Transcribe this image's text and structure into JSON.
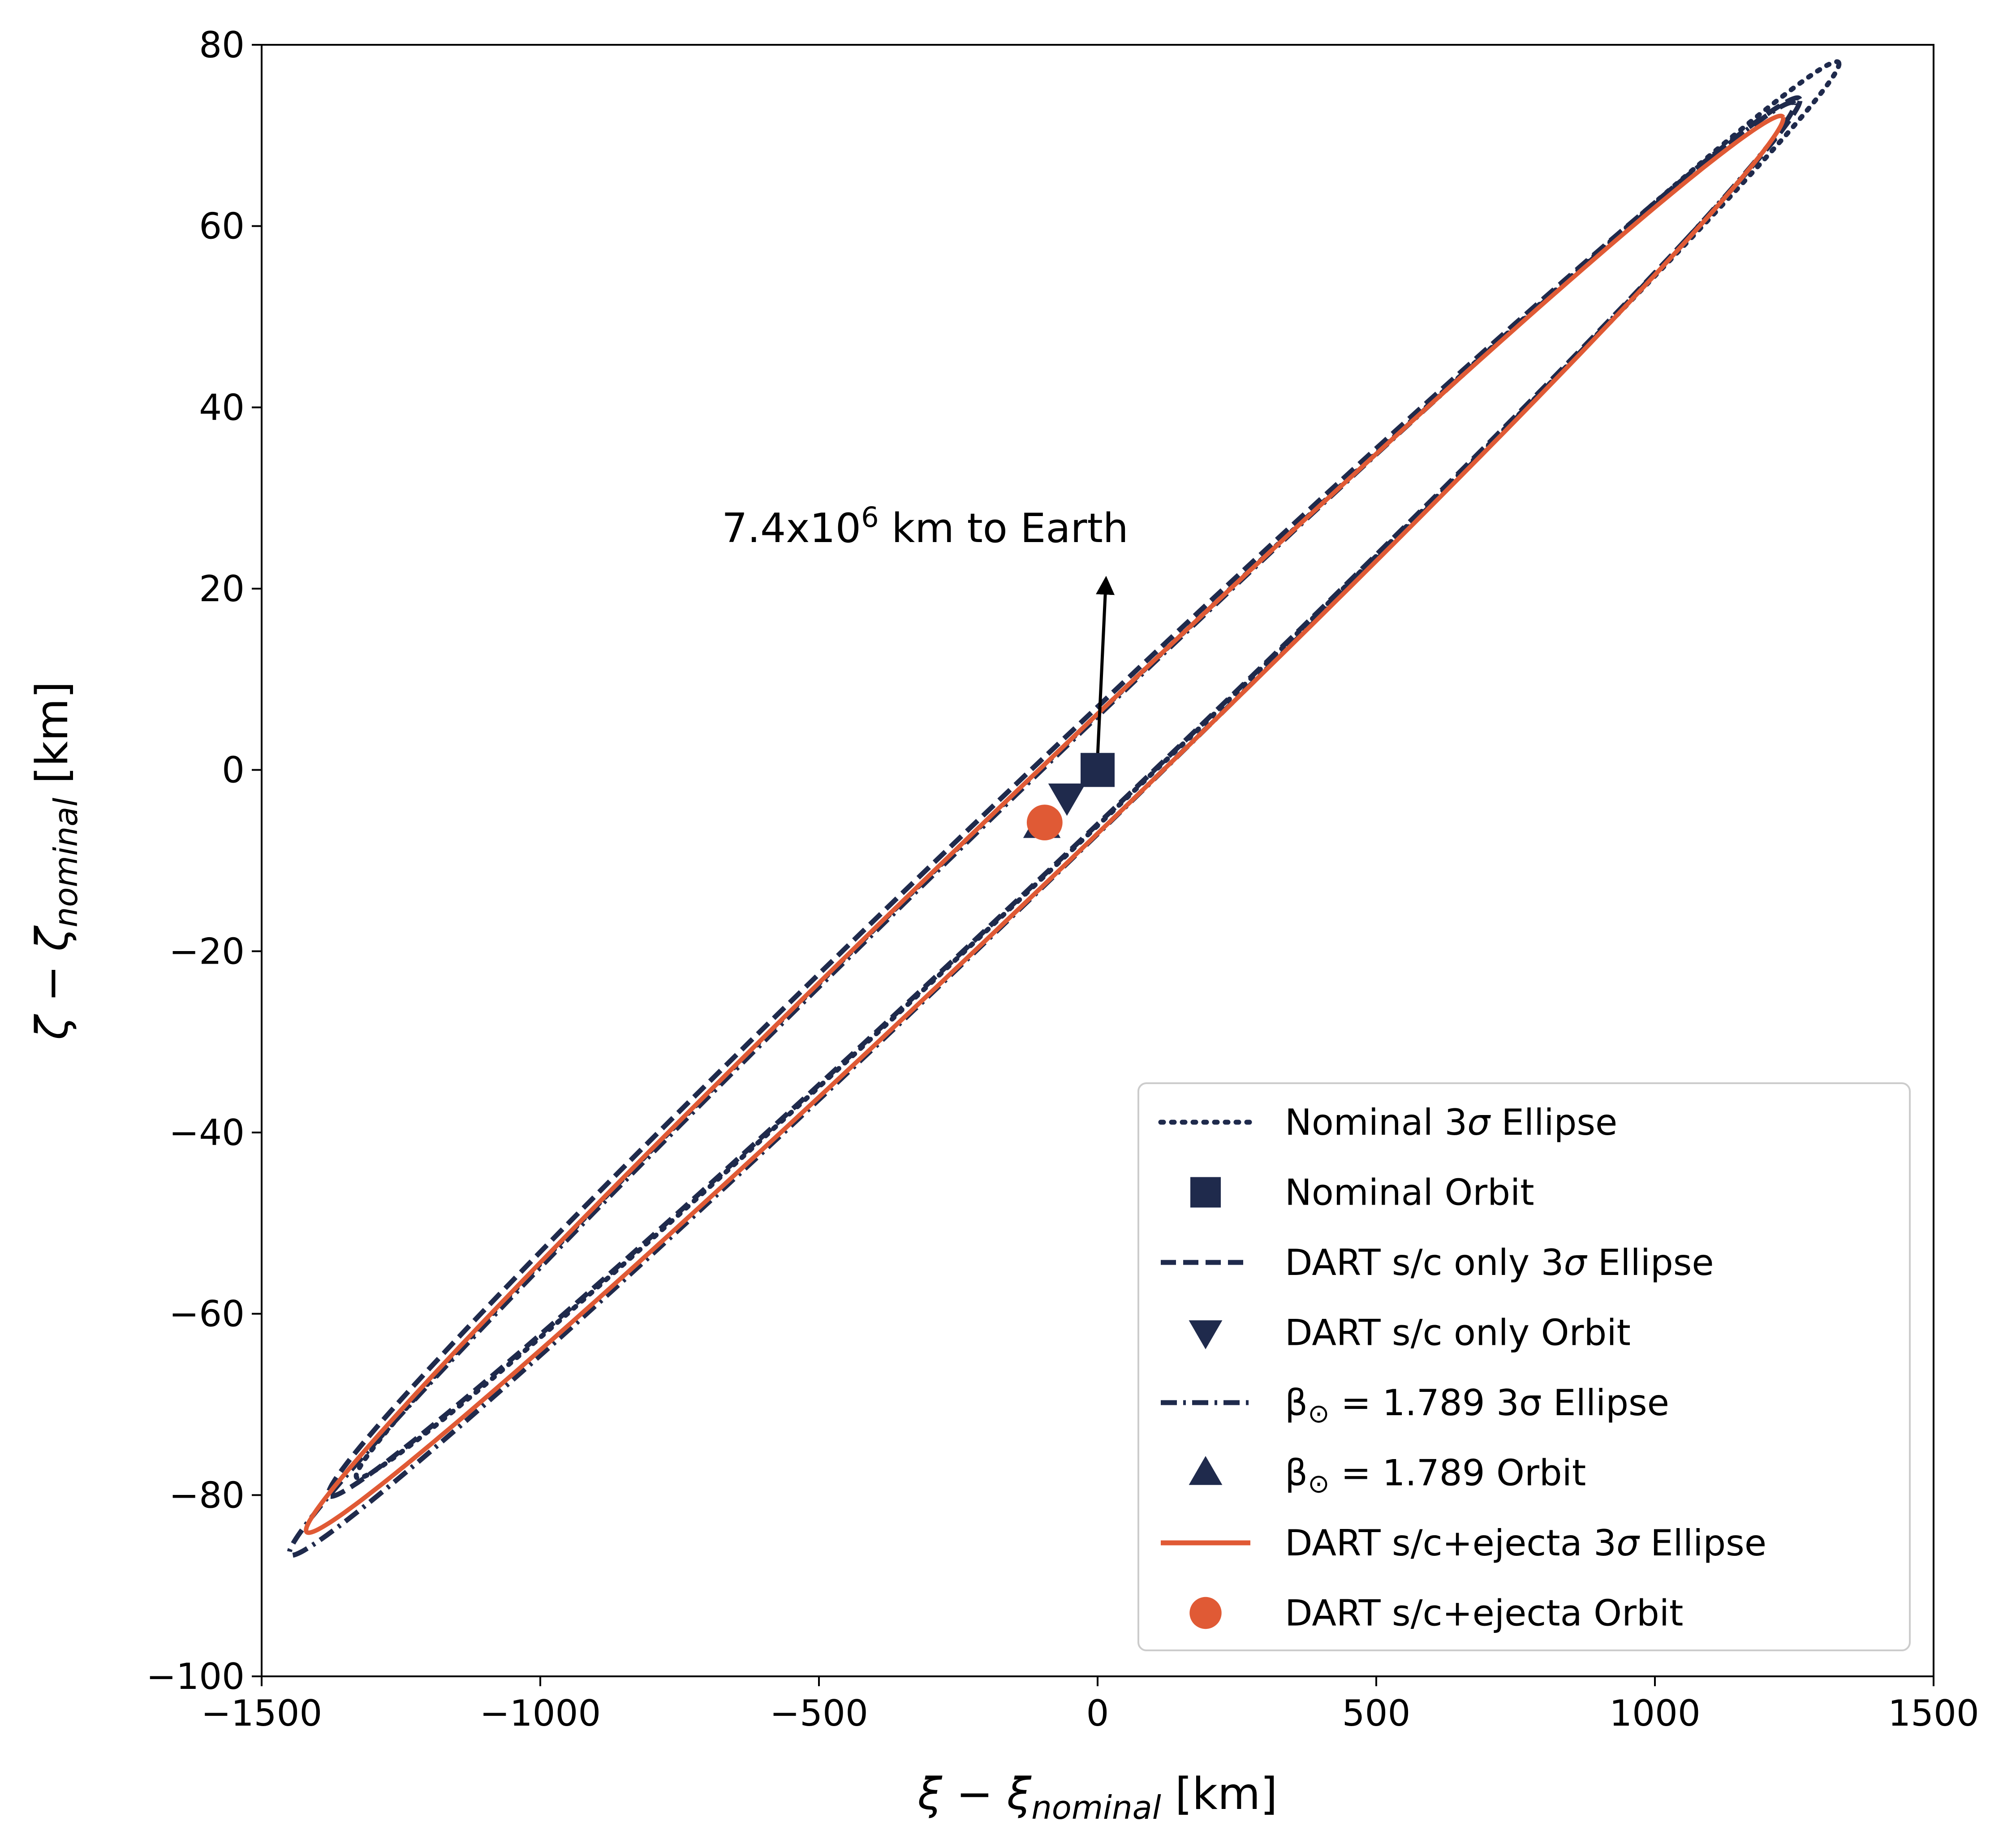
{
  "chart_data": {
    "type": "scatter",
    "xlabel": {
      "base": "ξ − ξ",
      "sub": "nominal",
      "unit": " [km]"
    },
    "ylabel": {
      "base": "ζ − ζ",
      "sub": "nominal",
      "unit": " [km]"
    },
    "xlim": [
      -1500,
      1500
    ],
    "ylim": [
      -100,
      80
    ],
    "xticks": [
      -1500,
      -1000,
      -500,
      0,
      500,
      1000,
      1500
    ],
    "yticks": [
      -100,
      -80,
      -60,
      -40,
      -20,
      0,
      20,
      40,
      60,
      80
    ],
    "xtick_labels": [
      "−1500",
      "−1000",
      "−500",
      "0",
      "500",
      "1000",
      "1500"
    ],
    "ytick_labels": [
      "−100",
      "−80",
      "−60",
      "−40",
      "−20",
      "0",
      "20",
      "40",
      "60",
      "80"
    ],
    "grid": false,
    "legend_position": "lower-right",
    "colors": {
      "navy": "#1f2a4c",
      "orange": "#e05a35",
      "axis": "#000000"
    },
    "annotation": {
      "text_prefix": "7.4x10",
      "text_sup": "6",
      "text_suffix": " km to Earth",
      "arrow_from": [
        0,
        0
      ],
      "arrow_to": [
        15,
        21
      ]
    },
    "ellipses": [
      {
        "name": "Nominal 3σ Ellipse",
        "center": [
          0,
          0
        ],
        "tip": [
          1330,
          78
        ],
        "minor": 5.3,
        "style": "dotted",
        "color": "#1f2a4c"
      },
      {
        "name": "DART s/c only 3σ Ellipse",
        "center": [
          -60,
          -3
        ],
        "tip": [
          1260,
          74
        ],
        "minor": 5.6,
        "style": "dashed",
        "color": "#1f2a4c"
      },
      {
        "name": "β⊙ = 1.789 3σ Ellipse",
        "center": [
          -100,
          -6.5
        ],
        "tip": [
          1250,
          73.5
        ],
        "minor": 5.6,
        "style": "dashdot",
        "color": "#1f2a4c"
      },
      {
        "name": "DART s/c+ejecta 3σ Ellipse",
        "center": [
          -95,
          -6
        ],
        "tip": [
          1230,
          72
        ],
        "minor": 5.7,
        "style": "solid",
        "color": "#e05a35"
      }
    ],
    "points": [
      {
        "name": "Nominal Orbit",
        "x": 0,
        "y": 0,
        "marker": "square",
        "color": "#1f2a4c"
      },
      {
        "name": "DART s/c only Orbit",
        "x": -55,
        "y": -3,
        "marker": "triangle-down",
        "color": "#1f2a4c"
      },
      {
        "name": "β⊙ = 1.789 Orbit",
        "x": -100,
        "y": -6,
        "marker": "triangle-up",
        "color": "#1f2a4c"
      },
      {
        "name": "DART s/c+ejecta Orbit",
        "x": -95,
        "y": -5.8,
        "marker": "circle",
        "color": "#e05a35"
      }
    ],
    "legend": [
      {
        "kind": "line",
        "style": "dotted",
        "color": "#1f2a4c",
        "parts": [
          "Nominal 3",
          "σ",
          " Ellipse"
        ]
      },
      {
        "kind": "marker",
        "marker": "square",
        "color": "#1f2a4c",
        "parts": [
          "Nominal Orbit",
          "",
          ""
        ]
      },
      {
        "kind": "line",
        "style": "dashed",
        "color": "#1f2a4c",
        "parts": [
          "DART s/c only 3",
          "σ",
          " Ellipse"
        ]
      },
      {
        "kind": "marker",
        "marker": "triangle-down",
        "color": "#1f2a4c",
        "parts": [
          "DART s/c only Orbit",
          "",
          ""
        ]
      },
      {
        "kind": "line",
        "style": "dashdot",
        "color": "#1f2a4c",
        "parts": [
          "β",
          "⊙",
          " = 1.789 3σ Ellipse"
        ]
      },
      {
        "kind": "marker",
        "marker": "triangle-up",
        "color": "#1f2a4c",
        "parts": [
          "β",
          "⊙",
          " = 1.789 Orbit"
        ]
      },
      {
        "kind": "line",
        "style": "solid",
        "color": "#e05a35",
        "parts": [
          "DART s/c+ejecta 3",
          "σ",
          " Ellipse"
        ]
      },
      {
        "kind": "marker",
        "marker": "circle",
        "color": "#e05a35",
        "parts": [
          "DART s/c+ejecta Orbit",
          "",
          ""
        ]
      }
    ]
  }
}
